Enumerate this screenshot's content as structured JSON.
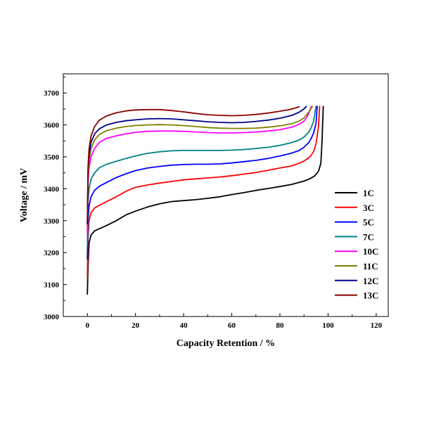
{
  "chart_data": {
    "type": "line",
    "title": "",
    "xlabel": "Capacity Retention / %",
    "ylabel": "Voltage / mV",
    "xlim": [
      -10,
      125
    ],
    "ylim": [
      3000,
      3760
    ],
    "xticks": [
      0,
      20,
      40,
      60,
      80,
      100,
      120
    ],
    "yticks": [
      3000,
      3100,
      3200,
      3300,
      3400,
      3500,
      3600,
      3700
    ],
    "grid": false,
    "legend_position": "right",
    "series": [
      {
        "name": "1C",
        "color": "#000000",
        "x": [
          0,
          0.3,
          0.7,
          1.5,
          3,
          5,
          8,
          12,
          16,
          20,
          25,
          30,
          35,
          40,
          45,
          50,
          55,
          60,
          65,
          70,
          75,
          80,
          85,
          88,
          90,
          92,
          94,
          95,
          96,
          97,
          97.5,
          98
        ],
        "y": [
          3070,
          3160,
          3230,
          3255,
          3268,
          3275,
          3285,
          3300,
          3318,
          3330,
          3343,
          3353,
          3360,
          3363,
          3366,
          3370,
          3375,
          3382,
          3388,
          3395,
          3401,
          3407,
          3414,
          3420,
          3424,
          3430,
          3438,
          3445,
          3455,
          3480,
          3550,
          3658
        ]
      },
      {
        "name": "3C",
        "color": "#ff0000",
        "x": [
          0,
          0.3,
          0.7,
          1.5,
          3,
          5,
          8,
          12,
          16,
          20,
          25,
          30,
          35,
          40,
          45,
          50,
          55,
          60,
          65,
          70,
          75,
          80,
          85,
          88,
          90,
          92,
          93,
          94,
          95,
          96,
          96.5
        ],
        "y": [
          3120,
          3250,
          3300,
          3325,
          3340,
          3348,
          3360,
          3375,
          3392,
          3405,
          3412,
          3418,
          3423,
          3428,
          3431,
          3434,
          3437,
          3441,
          3446,
          3451,
          3458,
          3465,
          3472,
          3480,
          3487,
          3497,
          3505,
          3517,
          3540,
          3595,
          3658
        ]
      },
      {
        "name": "5C",
        "color": "#0000ff",
        "x": [
          0,
          0.3,
          0.7,
          1.5,
          3,
          5,
          8,
          12,
          16,
          20,
          25,
          30,
          35,
          40,
          45,
          50,
          55,
          60,
          65,
          70,
          75,
          80,
          85,
          88,
          90,
          92,
          93,
          94,
          95,
          95.5
        ],
        "y": [
          3180,
          3300,
          3345,
          3375,
          3395,
          3408,
          3420,
          3435,
          3447,
          3457,
          3465,
          3470,
          3474,
          3476,
          3477,
          3477,
          3478,
          3481,
          3485,
          3489,
          3495,
          3503,
          3512,
          3520,
          3530,
          3545,
          3558,
          3575,
          3605,
          3658
        ]
      },
      {
        "name": "7C",
        "color": "#008080",
        "x": [
          0,
          0.3,
          0.7,
          1.5,
          3,
          5,
          8,
          12,
          16,
          20,
          25,
          30,
          35,
          40,
          45,
          50,
          55,
          60,
          65,
          70,
          75,
          80,
          85,
          88,
          90,
          92,
          93,
          94,
          95
        ],
        "y": [
          3220,
          3360,
          3400,
          3430,
          3450,
          3466,
          3477,
          3486,
          3495,
          3503,
          3511,
          3516,
          3519,
          3520,
          3520,
          3520,
          3520,
          3521,
          3523,
          3526,
          3530,
          3536,
          3545,
          3553,
          3562,
          3578,
          3592,
          3612,
          3658
        ]
      },
      {
        "name": "10C",
        "color": "#ff00ff",
        "x": [
          0,
          0.3,
          0.7,
          1.5,
          3,
          5,
          8,
          12,
          16,
          20,
          25,
          30,
          35,
          40,
          45,
          50,
          55,
          60,
          65,
          70,
          75,
          80,
          85,
          88,
          90,
          91,
          92,
          93
        ],
        "y": [
          3260,
          3420,
          3465,
          3500,
          3527,
          3545,
          3558,
          3566,
          3572,
          3577,
          3580,
          3581,
          3581,
          3580,
          3578,
          3576,
          3575,
          3575,
          3576,
          3578,
          3581,
          3585,
          3593,
          3602,
          3612,
          3622,
          3636,
          3658
        ]
      },
      {
        "name": "11C",
        "color": "#808000",
        "x": [
          0,
          0.3,
          0.7,
          1.5,
          3,
          5,
          8,
          12,
          16,
          20,
          25,
          30,
          35,
          40,
          45,
          50,
          55,
          60,
          65,
          70,
          75,
          80,
          85,
          88,
          90,
          91,
          92,
          93.5
        ],
        "y": [
          3280,
          3440,
          3490,
          3525,
          3553,
          3570,
          3582,
          3590,
          3595,
          3598,
          3600,
          3601,
          3600,
          3598,
          3595,
          3592,
          3590,
          3589,
          3589,
          3590,
          3593,
          3597,
          3604,
          3612,
          3622,
          3631,
          3641,
          3658
        ]
      },
      {
        "name": "12C",
        "color": "#00008b",
        "x": [
          0,
          0.3,
          0.7,
          1.5,
          3,
          5,
          8,
          12,
          16,
          20,
          25,
          30,
          35,
          40,
          45,
          50,
          55,
          60,
          65,
          70,
          75,
          80,
          85,
          88,
          90,
          91
        ],
        "y": [
          3290,
          3460,
          3505,
          3545,
          3572,
          3588,
          3600,
          3608,
          3613,
          3616,
          3619,
          3620,
          3619,
          3616,
          3613,
          3610,
          3608,
          3607,
          3608,
          3611,
          3615,
          3621,
          3630,
          3640,
          3650,
          3658
        ]
      },
      {
        "name": "13C",
        "color": "#8b0000",
        "x": [
          0,
          0.3,
          0.7,
          1.5,
          3,
          5,
          8,
          12,
          16,
          20,
          25,
          30,
          35,
          40,
          45,
          50,
          55,
          60,
          65,
          70,
          75,
          80,
          84,
          86,
          88
        ],
        "y": [
          3300,
          3470,
          3525,
          3565,
          3595,
          3615,
          3628,
          3638,
          3644,
          3647,
          3648,
          3648,
          3645,
          3641,
          3636,
          3632,
          3630,
          3629,
          3630,
          3633,
          3637,
          3643,
          3648,
          3652,
          3657
        ]
      }
    ]
  }
}
